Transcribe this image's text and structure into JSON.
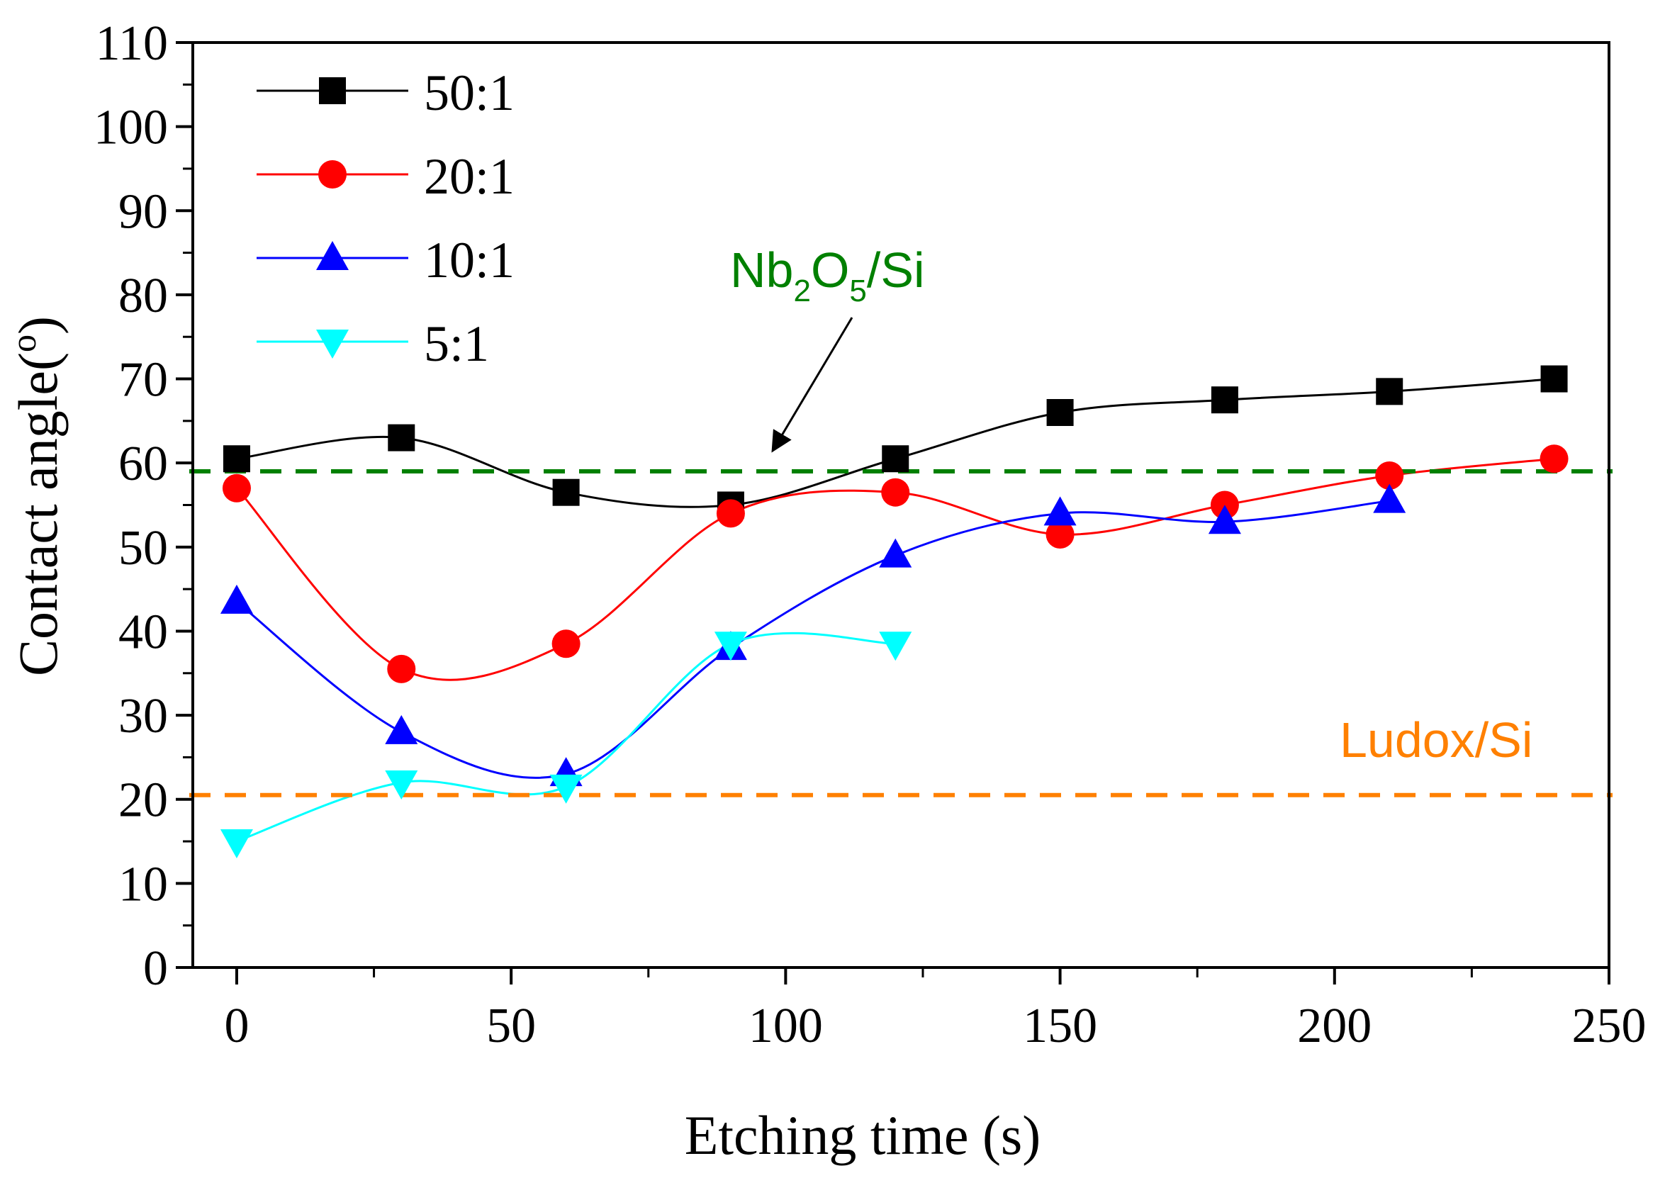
{
  "chart_data": {
    "type": "line",
    "title": "",
    "xlabel": "Etching time (s)",
    "ylabel": "Contact angle(°)",
    "ylabel_base": "Contact angle(",
    "ylabel_sup": "o",
    "ylabel_close": ")",
    "xlim": [
      -8,
      250
    ],
    "ylim": [
      0,
      110
    ],
    "xticks": [
      0,
      50,
      100,
      150,
      200,
      250
    ],
    "yticks": [
      0,
      10,
      20,
      30,
      40,
      50,
      60,
      70,
      80,
      90,
      100,
      110
    ],
    "xtick_labels": [
      "0",
      "50",
      "100",
      "150",
      "200",
      "250"
    ],
    "ytick_labels": [
      "0",
      "10",
      "20",
      "30",
      "40",
      "50",
      "60",
      "70",
      "80",
      "90",
      "100",
      "110"
    ],
    "grid": false,
    "legend_position": "top-left",
    "series": [
      {
        "name": "50:1",
        "color": "#000000",
        "marker": "square",
        "x": [
          0,
          30,
          60,
          90,
          120,
          150,
          180,
          210,
          240
        ],
        "y": [
          60.5,
          63,
          56.5,
          55,
          60.5,
          66,
          67.5,
          68.5,
          70
        ]
      },
      {
        "name": "20:1",
        "color": "#ff0000",
        "marker": "circle",
        "x": [
          0,
          30,
          60,
          90,
          120,
          150,
          180,
          210,
          240
        ],
        "y": [
          57,
          35.5,
          38.5,
          54,
          56.5,
          51.5,
          55,
          58.5,
          60.5
        ]
      },
      {
        "name": "10:1",
        "color": "#0000ff",
        "marker": "triangle-up",
        "x": [
          0,
          30,
          60,
          90,
          120,
          150,
          180,
          210
        ],
        "y": [
          43.5,
          28,
          23,
          38,
          49,
          54,
          53,
          55.5
        ]
      },
      {
        "name": "5:1",
        "color": "#00ffff",
        "marker": "triangle-down",
        "x": [
          0,
          30,
          60,
          90,
          120
        ],
        "y": [
          15,
          22,
          21.5,
          38.5,
          38.5
        ]
      }
    ],
    "reference_lines": [
      {
        "name": "Nb2O5/Si",
        "y": 59,
        "color": "#008000"
      },
      {
        "name": "Ludox/Si",
        "y": 20.5,
        "color": "#ff8000"
      }
    ],
    "annotations": {
      "nb2o5": {
        "p1": "Nb",
        "s1": "2",
        "p2": "O",
        "s2": "5",
        "p3": "/Si",
        "color": "#008000"
      },
      "ludox": {
        "text": "Ludox/Si",
        "color": "#ff8000"
      }
    }
  }
}
